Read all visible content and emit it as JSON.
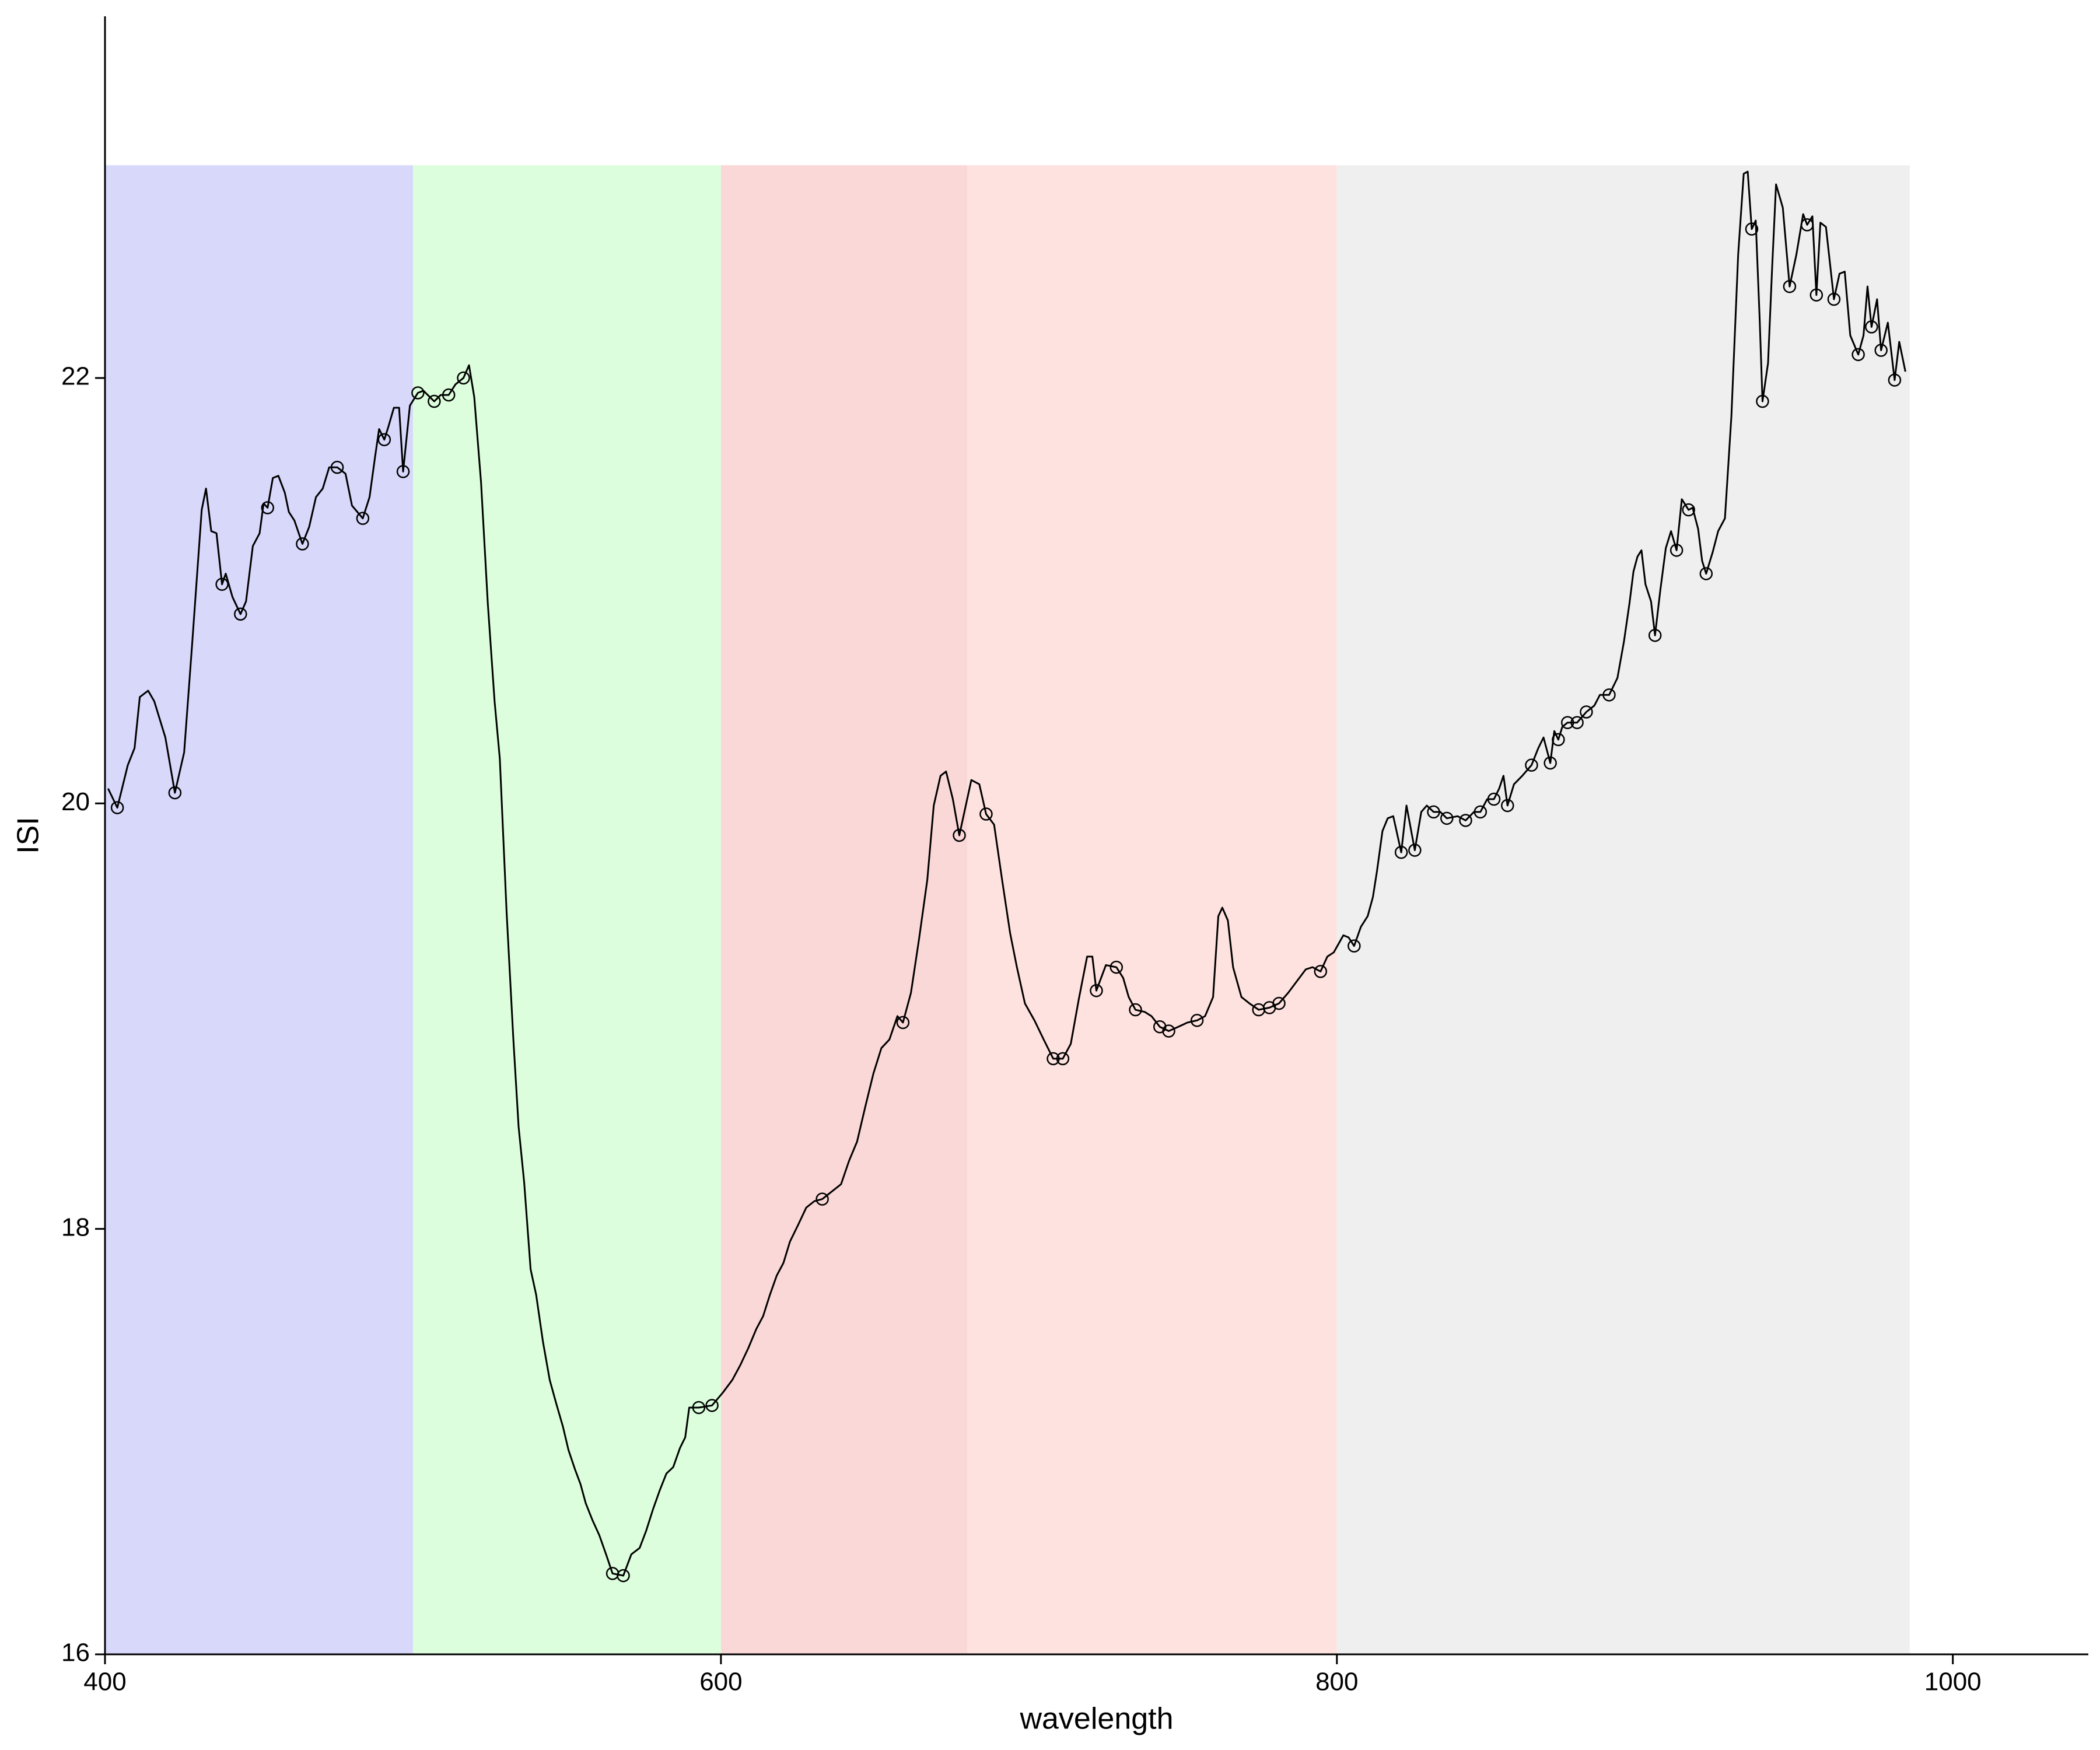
{
  "chart_data": {
    "type": "line",
    "x_label": "wavelength",
    "y_label": "ISI",
    "xlim": [
      400,
      1044
    ],
    "ylim": [
      16,
      23.7
    ],
    "xticks": [
      400,
      600,
      800,
      1000
    ],
    "yticks": [
      16,
      18,
      20,
      22
    ],
    "grid": false,
    "color": "#000000",
    "regions": [
      {
        "from": 400,
        "to": 500,
        "color": "#d8d8fb"
      },
      {
        "from": 500,
        "to": 600,
        "color": "#dcfedc"
      },
      {
        "from": 600,
        "to": 680,
        "color": "#fbd8d8"
      },
      {
        "from": 680,
        "to": 800,
        "color": "#fee2df"
      },
      {
        "from": 800,
        "to": 986,
        "color": "#efefef"
      }
    ],
    "region_top": 23,
    "x": [
      401,
      404,
      407.4,
      409.6,
      411.3,
      414,
      416,
      419.6,
      422.7,
      425.7,
      428.3,
      431.4,
      432.8,
      434.5,
      436.2,
      438,
      439.2,
      441.4,
      444,
      445.8,
      448,
      450.2,
      451.5,
      452.8,
      454.5,
      456.3,
      458.4,
      459.7,
      461.5,
      464.1,
      466.3,
      468.5,
      470.7,
      472.8,
      475.4,
      478.1,
      480.2,
      483.7,
      485.9,
      487.7,
      489,
      490.7,
      492,
      493.8,
      495.5,
      496.8,
      499,
      501.6,
      503.4,
      506.9,
      509,
      511.6,
      513.8,
      516.4,
      518.2,
      519.9,
      522.1,
      524.3,
      526.5,
      528.2,
      530.4,
      532.6,
      534.3,
      536.1,
      538.2,
      540,
      542.2,
      544.4,
      546.5,
      548.7,
      550.5,
      552.6,
      554.4,
      556.1,
      558.3,
      560.5,
      562.7,
      564.8,
      568.3,
      570.9,
      573.6,
      575.7,
      577.9,
      580.1,
      582.3,
      584.5,
      586.7,
      588.4,
      589.7,
      592.8,
      597.1,
      600.6,
      603.7,
      606.3,
      608.9,
      611.5,
      613.7,
      615.9,
      618.1,
      620.3,
      622.4,
      625.1,
      627.7,
      630.3,
      632.9,
      635.5,
      639,
      641.6,
      644.2,
      646.8,
      649.5,
      652.1,
      654.7,
      657.3,
      659.1,
      661.7,
      664.3,
      667,
      669.1,
      671.3,
      673.1,
      675.3,
      677.4,
      679.5,
      681.3,
      683.9,
      686.1,
      688.7,
      691.3,
      693.9,
      696.1,
      698.7,
      701.8,
      704.8,
      707.9,
      711,
      713.6,
      716.2,
      718.9,
      720.6,
      721.9,
      725,
      728.4,
      730.6,
      732.4,
      734.6,
      737.6,
      739.8,
      742.5,
      745.4,
      748.5,
      751.5,
      754.6,
      757.2,
      759.8,
      761.5,
      762.8,
      764.6,
      766.3,
      769,
      771.6,
      774.6,
      778.1,
      781.2,
      784.2,
      787.3,
      789.9,
      792.1,
      794.7,
      796.9,
      799,
      802.1,
      803.8,
      805.6,
      807.8,
      810,
      811.7,
      813,
      814.8,
      816.5,
      818.3,
      820.9,
      822.6,
      825.3,
      827.4,
      829.2,
      831.4,
      833.6,
      835.7,
      839.2,
      841.8,
      844.5,
      846.6,
      848.8,
      851,
      852.7,
      854.1,
      855.4,
      857.5,
      860.2,
      863.2,
      865.4,
      867.1,
      869.3,
      870.6,
      871.9,
      873.2,
      874.9,
      878,
      881,
      883.6,
      885.4,
      888.4,
      891.1,
      893.2,
      895,
      896.3,
      897.6,
      898.9,
      900.2,
      902,
      903.3,
      905,
      906.8,
      908.5,
      910.3,
      912,
      914.2,
      915.5,
      917.3,
      918.6,
      919.9,
      922,
      923.8,
      926,
      928.1,
      930.3,
      932.1,
      933.4,
      934.7,
      936,
      937.3,
      938.2,
      940,
      941.3,
      942.6,
      944.8,
      947,
      949.2,
      951.4,
      952.7,
      954.4,
      955.7,
      957,
      958.8,
      961.4,
      963.2,
      964.9,
      966.7,
      969.3,
      971,
      972.3,
      973.6,
      975.4,
      976.7,
      978.9,
      981.1,
      982.6,
      984.6
    ],
    "values": [
      20.07,
      19.98,
      20.18,
      20.26,
      20.5,
      20.53,
      20.48,
      20.31,
      20.05,
      20.24,
      20.75,
      21.38,
      21.48,
      21.28,
      21.27,
      21.03,
      21.08,
      20.97,
      20.89,
      20.95,
      21.21,
      21.27,
      21.41,
      21.39,
      21.53,
      21.54,
      21.46,
      21.37,
      21.33,
      21.22,
      21.3,
      21.44,
      21.48,
      21.58,
      21.58,
      21.55,
      21.4,
      21.34,
      21.44,
      21.63,
      21.76,
      21.71,
      21.77,
      21.86,
      21.86,
      21.56,
      21.87,
      21.93,
      21.94,
      21.89,
      21.92,
      21.92,
      21.97,
      22.0,
      22.06,
      21.91,
      21.51,
      20.94,
      20.48,
      20.21,
      19.49,
      18.89,
      18.48,
      18.22,
      17.81,
      17.69,
      17.47,
      17.29,
      17.18,
      17.07,
      16.96,
      16.87,
      16.8,
      16.71,
      16.63,
      16.56,
      16.47,
      16.38,
      16.37,
      16.47,
      16.5,
      16.58,
      16.68,
      16.77,
      16.85,
      16.88,
      16.97,
      17.02,
      17.16,
      17.16,
      17.17,
      17.23,
      17.29,
      17.36,
      17.44,
      17.53,
      17.59,
      17.69,
      17.78,
      17.84,
      17.94,
      18.02,
      18.1,
      18.13,
      18.14,
      18.17,
      18.21,
      18.32,
      18.41,
      18.57,
      18.73,
      18.85,
      18.89,
      19.0,
      18.97,
      19.11,
      19.36,
      19.64,
      19.99,
      20.13,
      20.15,
      20.02,
      19.85,
      19.99,
      20.11,
      20.09,
      19.95,
      19.9,
      19.64,
      19.39,
      19.23,
      19.06,
      18.98,
      18.89,
      18.8,
      18.8,
      18.87,
      19.08,
      19.28,
      19.28,
      19.12,
      19.24,
      19.23,
      19.18,
      19.09,
      19.03,
      19.02,
      19.0,
      18.95,
      18.93,
      18.95,
      18.97,
      18.98,
      19.0,
      19.09,
      19.47,
      19.51,
      19.45,
      19.23,
      19.09,
      19.06,
      19.03,
      19.04,
      19.06,
      19.11,
      19.17,
      19.22,
      19.23,
      19.21,
      19.28,
      19.3,
      19.38,
      19.37,
      19.33,
      19.42,
      19.47,
      19.56,
      19.68,
      19.87,
      19.93,
      19.94,
      19.77,
      19.99,
      19.78,
      19.96,
      19.99,
      19.96,
      19.96,
      19.93,
      19.94,
      19.92,
      19.96,
      19.96,
      20.02,
      20.02,
      20.07,
      20.13,
      19.99,
      20.09,
      20.13,
      20.18,
      20.26,
      20.31,
      20.19,
      20.34,
      20.3,
      20.36,
      20.38,
      20.38,
      20.43,
      20.46,
      20.51,
      20.51,
      20.59,
      20.76,
      20.94,
      21.09,
      21.16,
      21.19,
      21.03,
      20.95,
      20.79,
      21.0,
      21.2,
      21.28,
      21.19,
      21.43,
      21.38,
      21.39,
      21.29,
      21.14,
      21.08,
      21.18,
      21.28,
      21.34,
      21.82,
      22.58,
      22.96,
      22.97,
      22.7,
      22.74,
      22.27,
      21.89,
      22.07,
      22.51,
      22.91,
      22.8,
      22.43,
      22.58,
      22.77,
      22.72,
      22.76,
      22.39,
      22.73,
      22.71,
      22.37,
      22.49,
      22.5,
      22.2,
      22.11,
      22.2,
      22.43,
      22.24,
      22.37,
      22.13,
      22.26,
      21.99,
      22.17,
      22.03
    ],
    "points": {
      "x": [
        404,
        422.7,
        438,
        444,
        452.8,
        464.1,
        475.4,
        483.7,
        490.7,
        496.8,
        501.6,
        506.9,
        511.6,
        516.4,
        564.8,
        568.3,
        592.8,
        597.1,
        632.9,
        659.1,
        677.4,
        686.1,
        707.9,
        711,
        721.9,
        728.4,
        734.6,
        742.5,
        745.4,
        754.6,
        774.6,
        778.1,
        781.2,
        794.7,
        805.6,
        820.9,
        825.3,
        831.4,
        835.7,
        841.8,
        846.6,
        851,
        855.4,
        863.2,
        869.3,
        871.9,
        874.9,
        878,
        881,
        888.4,
        903.3,
        910.3,
        914.2,
        919.9,
        934.7,
        938.2,
        947,
        952.7,
        955.7,
        961.4,
        969.3,
        973.6,
        976.7,
        981.1
      ],
      "values": [
        19.98,
        20.05,
        21.03,
        20.89,
        21.39,
        21.22,
        21.58,
        21.34,
        21.71,
        21.56,
        21.93,
        21.89,
        21.92,
        22.0,
        16.38,
        16.37,
        17.16,
        17.17,
        18.14,
        18.97,
        19.85,
        19.95,
        18.8,
        18.8,
        19.12,
        19.23,
        19.03,
        18.95,
        18.93,
        18.98,
        19.03,
        19.04,
        19.06,
        19.21,
        19.33,
        19.77,
        19.78,
        19.96,
        19.93,
        19.92,
        19.96,
        20.02,
        19.99,
        20.18,
        20.19,
        20.3,
        20.38,
        20.38,
        20.43,
        20.51,
        20.79,
        21.19,
        21.38,
        21.08,
        22.7,
        21.89,
        22.43,
        22.72,
        22.39,
        22.37,
        22.11,
        22.24,
        22.13,
        21.99
      ]
    }
  }
}
